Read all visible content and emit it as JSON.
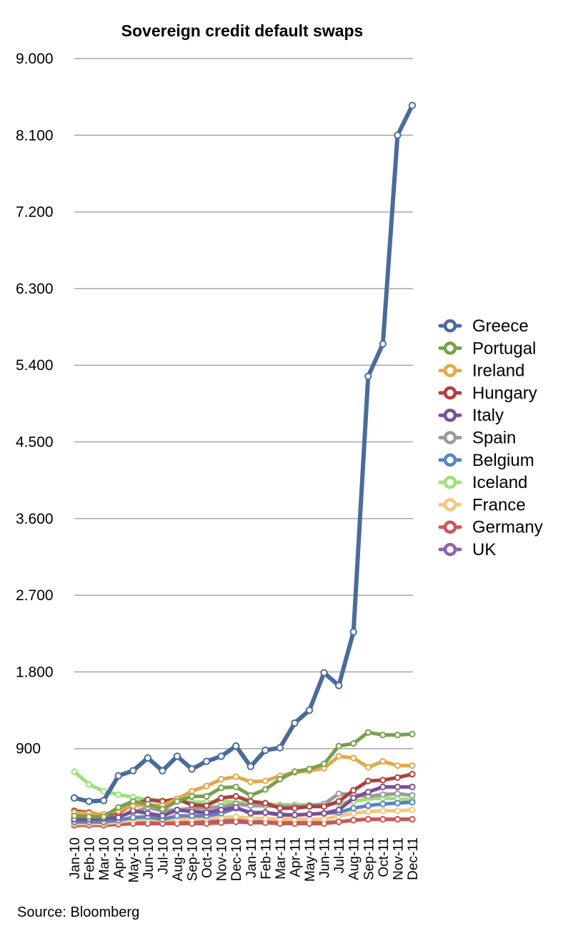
{
  "chart_data": {
    "type": "line",
    "title": "Sovereign credit default swaps",
    "xlabel": "",
    "ylabel": "",
    "source": "Source: Bloomberg",
    "legend_position": "right",
    "grid": true,
    "ylim": [
      0,
      9000
    ],
    "yticks": [
      900,
      1800,
      2700,
      3600,
      4500,
      5400,
      6300,
      7200,
      8100,
      9000
    ],
    "ytick_labels": [
      "900",
      "1.800",
      "2.700",
      "3.600",
      "4.500",
      "5.400",
      "6.300",
      "7.200",
      "8.100",
      "9.000"
    ],
    "categories": [
      "Jan-10",
      "Feb-10",
      "Mar-10",
      "Apr-10",
      "May-10",
      "Jun-10",
      "Jul-10",
      "Aug-10",
      "Sep-10",
      "Oct-10",
      "Nov-10",
      "Dec-10",
      "Jan-11",
      "Feb-11",
      "Mar-11",
      "Apr-11",
      "May-11",
      "Jun-11",
      "Jul-11",
      "Aug-11",
      "Sep-11",
      "Oct-11",
      "Nov-11",
      "Dec-11"
    ],
    "series": [
      {
        "name": "Greece",
        "color": "#4a6b9c",
        "values": [
          320,
          280,
          290,
          580,
          640,
          790,
          640,
          810,
          660,
          750,
          810,
          930,
          690,
          880,
          910,
          1200,
          1350,
          1790,
          1640,
          2270,
          5270,
          5650,
          8100,
          8450
        ]
      },
      {
        "name": "Portugal",
        "color": "#78a04c",
        "values": [
          110,
          100,
          100,
          210,
          280,
          250,
          190,
          280,
          340,
          340,
          440,
          450,
          350,
          420,
          540,
          630,
          660,
          720,
          930,
          960,
          1090,
          1060,
          1060,
          1070
        ]
      },
      {
        "name": "Ireland",
        "color": "#e2a94a",
        "values": [
          150,
          140,
          130,
          170,
          230,
          240,
          230,
          310,
          400,
          460,
          540,
          570,
          510,
          520,
          580,
          620,
          640,
          670,
          810,
          790,
          680,
          750,
          700,
          700
        ]
      },
      {
        "name": "Hungary",
        "color": "#b03f3f",
        "values": [
          170,
          150,
          120,
          150,
          240,
          300,
          280,
          310,
          240,
          230,
          320,
          340,
          280,
          260,
          200,
          200,
          220,
          220,
          280,
          410,
          520,
          530,
          560,
          600
        ]
      },
      {
        "name": "Italy",
        "color": "#7c4f95",
        "values": [
          70,
          70,
          80,
          90,
          170,
          140,
          110,
          180,
          160,
          150,
          180,
          210,
          140,
          150,
          120,
          120,
          130,
          140,
          180,
          320,
          390,
          450,
          450,
          450
        ]
      },
      {
        "name": "Spain",
        "color": "#9b9b9b",
        "values": [
          100,
          90,
          90,
          110,
          150,
          210,
          170,
          180,
          200,
          200,
          220,
          250,
          230,
          230,
          220,
          220,
          230,
          250,
          370,
          360,
          340,
          360,
          370,
          350
        ]
      },
      {
        "name": "Belgium",
        "color": "#5a84c0",
        "values": [
          40,
          40,
          40,
          60,
          90,
          100,
          70,
          110,
          110,
          110,
          140,
          200,
          150,
          150,
          130,
          120,
          130,
          140,
          150,
          200,
          230,
          250,
          260,
          270
        ]
      },
      {
        "name": "Iceland",
        "color": "#9de07a",
        "values": [
          630,
          480,
          400,
          360,
          330,
          300,
          290,
          280,
          270,
          270,
          280,
          270,
          260,
          250,
          240,
          240,
          240,
          240,
          260,
          280,
          310,
          320,
          310,
          300
        ]
      },
      {
        "name": "France",
        "color": "#f3c880",
        "values": [
          20,
          20,
          20,
          40,
          60,
          70,
          60,
          70,
          70,
          80,
          90,
          100,
          80,
          80,
          70,
          70,
          70,
          70,
          110,
          140,
          160,
          170,
          170,
          180
        ]
      },
      {
        "name": "Germany",
        "color": "#c85858",
        "values": [
          0,
          0,
          0,
          10,
          20,
          20,
          20,
          20,
          20,
          20,
          30,
          40,
          30,
          30,
          20,
          20,
          20,
          20,
          40,
          60,
          70,
          70,
          70,
          70
        ]
      },
      {
        "name": "UK",
        "color": "#8c66a8",
        "values": [
          20,
          20,
          20,
          30,
          40,
          40,
          40,
          40,
          40,
          40,
          50,
          60,
          50,
          40,
          40,
          30,
          30,
          30,
          40,
          60,
          70,
          70,
          70,
          70
        ]
      }
    ]
  }
}
